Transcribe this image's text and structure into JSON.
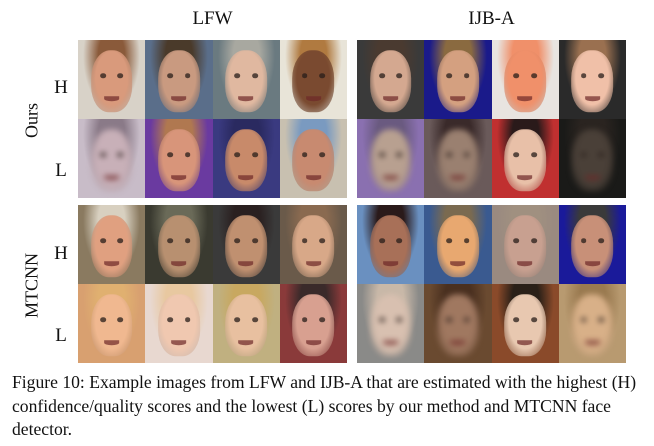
{
  "figure": {
    "columns": [
      {
        "title": "LFW"
      },
      {
        "title": "IJB-A"
      }
    ],
    "methods": [
      {
        "label": "Ours",
        "rows": [
          {
            "label": "H"
          },
          {
            "label": "L"
          }
        ]
      },
      {
        "label": "MTCNN",
        "rows": [
          {
            "label": "H"
          },
          {
            "label": "L"
          }
        ]
      }
    ],
    "images": {
      "ours_lfw_H": [
        {
          "description": "smiling man, light hair",
          "bg": "#d8d2c8",
          "skin": "#d99a7c",
          "hair": "#8a5a3a",
          "blur": false
        },
        {
          "description": "man, neutral expression",
          "bg": "#5a6e8a",
          "skin": "#c99a80",
          "hair": "#4a3a2a",
          "blur": false
        },
        {
          "description": "older man, grey hair",
          "bg": "#6a7a80",
          "skin": "#e0b8a0",
          "hair": "#a8a8a0",
          "blur": false
        },
        {
          "description": "smiling woman, long hair",
          "bg": "#e8e4d8",
          "skin": "#7a4a30",
          "hair": "#b07a40",
          "blur": false
        }
      ],
      "ours_lfw_L": [
        {
          "description": "very blurry face",
          "bg": "#c8bcc8",
          "skin": "#c8b0b8",
          "hair": "#8a7a88",
          "blur": true
        },
        {
          "description": "face looking down",
          "bg": "#6a3aa0",
          "skin": "#d8957a",
          "hair": "#b07850",
          "blur": false
        },
        {
          "description": "shouting man with cap",
          "bg": "#3a3a80",
          "skin": "#c88a6a",
          "hair": "#2a2a60",
          "blur": false
        },
        {
          "description": "crying woman with headscarf",
          "bg": "#c8c0b0",
          "skin": "#c88a70",
          "hair": "#7a9ac0",
          "blur": false
        }
      ],
      "ours_ijba_H": [
        {
          "description": "man, frontal neutral",
          "bg": "#3a3a3a",
          "skin": "#d4a890",
          "hair": "#4a3a30",
          "blur": false
        },
        {
          "description": "bearded young man",
          "bg": "#1a1a8a",
          "skin": "#d4a080",
          "hair": "#8a6a40",
          "blur": false
        },
        {
          "description": "bald man speaking",
          "bg": "#e8e4e0",
          "skin": "#f0906a",
          "hair": "#f0906a",
          "blur": false
        },
        {
          "description": "smiling young woman",
          "bg": "#2a2a2a",
          "skin": "#f0c0a8",
          "hair": "#9a7050",
          "blur": false
        }
      ],
      "ours_ijba_L": [
        {
          "description": "blurry colorful face",
          "bg": "#8a70b0",
          "skin": "#b8a090",
          "hair": "#6a5a80",
          "blur": true
        },
        {
          "description": "blurry dark face",
          "bg": "#6a5a5a",
          "skin": "#9a8070",
          "hair": "#3a2a2a",
          "blur": true
        },
        {
          "description": "profile face, red background",
          "bg": "#c03030",
          "skin": "#e8c0a8",
          "hair": "#2a1a1a",
          "blur": false
        },
        {
          "description": "very dark blurry face",
          "bg": "#1a1a18",
          "skin": "#4a4038",
          "hair": "#2a2420",
          "blur": true
        }
      ],
      "mtcnn_lfw_H": [
        {
          "description": "laughing older man",
          "bg": "#8a7a60",
          "skin": "#e0a080",
          "hair": "#d8d0c0",
          "blur": false
        },
        {
          "description": "older man, grey hair",
          "bg": "#3a3a30",
          "skin": "#b89070",
          "hair": "#6a6a58",
          "blur": false
        },
        {
          "description": "man speaking",
          "bg": "#3a3a3a",
          "skin": "#c09070",
          "hair": "#2a2020",
          "blur": false
        },
        {
          "description": "man with beard stubble",
          "bg": "#6a5a4a",
          "skin": "#d8a888",
          "hair": "#8a6a50",
          "blur": false
        }
      ],
      "mtcnn_lfw_L": [
        {
          "description": "woman with tinted glasses",
          "bg": "#d8a070",
          "skin": "#f0b890",
          "hair": "#e0b070",
          "blur": false
        },
        {
          "description": "smiling child",
          "bg": "#e8d8d0",
          "skin": "#f0c8b0",
          "hair": "#e8c8a0",
          "blur": false
        },
        {
          "description": "singer with glasses and mic",
          "bg": "#c0b080",
          "skin": "#e8c0a0",
          "hair": "#c8a860",
          "blur": false
        },
        {
          "description": "surprised man with glasses",
          "bg": "#8a3a3a",
          "skin": "#d8a090",
          "hair": "#3a2a2a",
          "blur": false
        }
      ],
      "mtcnn_ijba_H": [
        {
          "description": "woman, partial face",
          "bg": "#6a90c0",
          "skin": "#a87058",
          "hair": "#2a1a1a",
          "blur": false
        },
        {
          "description": "man speaking at event",
          "bg": "#3a5a90",
          "skin": "#e8a870",
          "hair": "#7a6a50",
          "blur": false
        },
        {
          "description": "man with glasses",
          "bg": "#9a8a80",
          "skin": "#c8a090",
          "hair": "#a09080",
          "blur": false
        },
        {
          "description": "man, blue background",
          "bg": "#1a1a9a",
          "skin": "#c89078",
          "hair": "#3a3a3a",
          "blur": false
        }
      ],
      "mtcnn_ijba_L": [
        {
          "description": "blurry bald man",
          "bg": "#8a8a88",
          "skin": "#d8c0b0",
          "hair": "#c8b8a8",
          "blur": true
        },
        {
          "description": "very blurry brown face",
          "bg": "#6a4a30",
          "skin": "#a07860",
          "hair": "#4a3020",
          "blur": true
        },
        {
          "description": "profile woman, patterned background",
          "bg": "#8a4a2a",
          "skin": "#e8c8b0",
          "hair": "#2a2018",
          "blur": false
        },
        {
          "description": "blurry side profile",
          "bg": "#b89a70",
          "skin": "#d8b088",
          "hair": "#9a7a50",
          "blur": true
        }
      ]
    },
    "caption": "Figure 10: Example images from LFW and IJB-A that are estimated with the highest (H) confidence/quality scores and the lowest (L) scores by our method and MTCNN face detector."
  }
}
